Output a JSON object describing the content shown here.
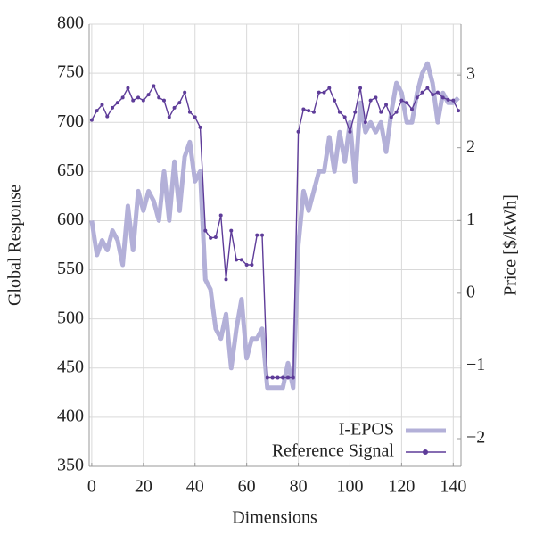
{
  "chart_data": {
    "type": "line",
    "x_label": "Dimensions",
    "y_label": "Global Response",
    "y2_label": "Price [$/kWh]",
    "xlim": [
      -1,
      143
    ],
    "xticks": [
      0,
      20,
      40,
      60,
      80,
      100,
      120,
      140
    ],
    "ylim": [
      350,
      800
    ],
    "yticks": [
      350,
      400,
      450,
      500,
      550,
      600,
      650,
      700,
      750,
      800
    ],
    "y2lim": [
      -2.38,
      3.7
    ],
    "y2ticks": [
      {
        "value": -2,
        "label": "−2"
      },
      {
        "value": -1,
        "label": "−1"
      },
      0,
      1,
      2,
      3
    ],
    "grid": true,
    "legend": "lower right",
    "x": [
      0,
      2,
      4,
      6,
      8,
      10,
      12,
      14,
      16,
      18,
      20,
      22,
      24,
      26,
      28,
      30,
      32,
      34,
      36,
      38,
      40,
      42,
      44,
      46,
      48,
      50,
      52,
      54,
      56,
      58,
      60,
      62,
      64,
      66,
      68,
      70,
      72,
      74,
      76,
      78,
      80,
      82,
      84,
      86,
      88,
      90,
      92,
      94,
      96,
      98,
      100,
      102,
      104,
      106,
      108,
      110,
      112,
      114,
      116,
      118,
      120,
      122,
      124,
      126,
      128,
      130,
      132,
      134,
      136,
      138,
      140,
      142
    ],
    "series": [
      {
        "name": "I-EPOS",
        "color": "#b3b0d8",
        "axis": "y",
        "values": [
          600,
          565,
          580,
          570,
          590,
          580,
          555,
          615,
          570,
          630,
          610,
          630,
          620,
          600,
          650,
          600,
          660,
          610,
          665,
          680,
          640,
          650,
          540,
          530,
          490,
          480,
          505,
          450,
          490,
          520,
          460,
          480,
          480,
          490,
          430,
          430,
          430,
          430,
          455,
          430,
          575,
          630,
          610,
          630,
          650,
          650,
          685,
          650,
          690,
          660,
          700,
          640,
          720,
          690,
          700,
          690,
          700,
          670,
          710,
          740,
          730,
          700,
          700,
          730,
          750,
          760,
          740,
          700,
          730,
          720,
          720,
          725
        ]
      },
      {
        "name": "Reference Signal",
        "color": "#5e3c99",
        "axis": "y2",
        "values": [
          2.38,
          2.51,
          2.59,
          2.43,
          2.55,
          2.62,
          2.69,
          2.82,
          2.65,
          2.69,
          2.65,
          2.73,
          2.85,
          2.69,
          2.65,
          2.42,
          2.55,
          2.62,
          2.76,
          2.49,
          2.42,
          2.28,
          0.86,
          0.76,
          0.77,
          1.07,
          0.19,
          0.86,
          0.46,
          0.46,
          0.39,
          0.39,
          0.8,
          0.8,
          -1.16,
          -1.16,
          -1.16,
          -1.16,
          -1.16,
          -1.16,
          2.22,
          2.53,
          2.51,
          2.49,
          2.76,
          2.76,
          2.82,
          2.65,
          2.49,
          2.42,
          2.22,
          2.49,
          2.82,
          2.35,
          2.65,
          2.69,
          2.49,
          2.59,
          2.42,
          2.49,
          2.65,
          2.62,
          2.53,
          2.69,
          2.76,
          2.82,
          2.73,
          2.76,
          2.69,
          2.66,
          2.65,
          2.51
        ]
      }
    ]
  }
}
